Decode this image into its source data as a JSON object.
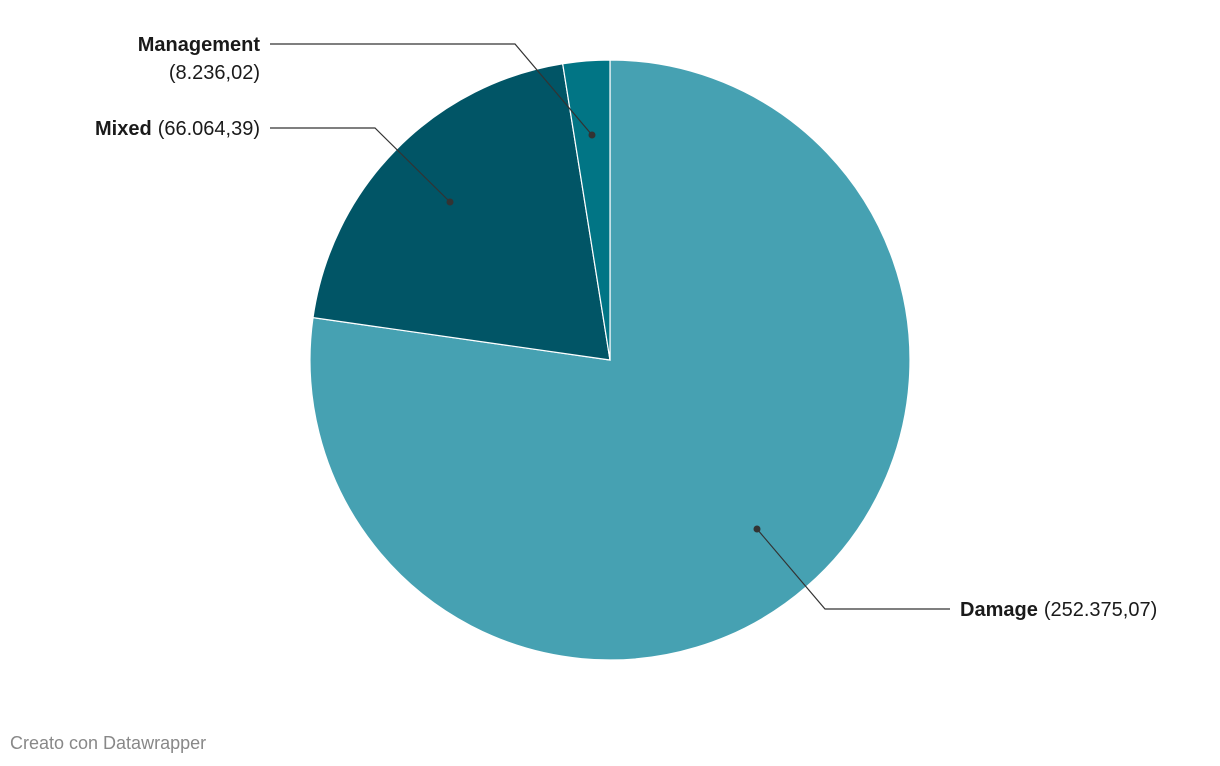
{
  "chart_data": {
    "type": "pie",
    "categories": [
      "Damage",
      "Mixed",
      "Management"
    ],
    "values": [
      252375.07,
      66064.39,
      8236.02
    ],
    "value_labels": [
      "(252.375,07)",
      "(66.064,39)",
      "(8.236,02)"
    ],
    "colors": [
      "#46a1b2",
      "#015566",
      "#017585"
    ],
    "credit": "Creato con Datawrapper"
  }
}
